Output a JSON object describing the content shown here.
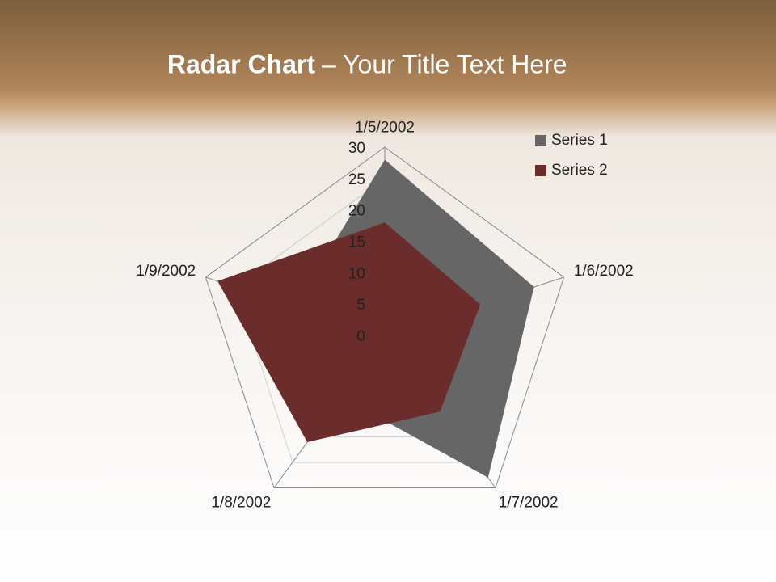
{
  "chart_data": {
    "type": "radar",
    "title": "Radar Chart",
    "subtitle": "– Your Title Text Here",
    "categories": [
      "1/5/2002",
      "1/6/2002",
      "1/7/2002",
      "1/8/2002",
      "1/9/2002"
    ],
    "series": [
      {
        "name": "Series 1",
        "color": "#666666",
        "values": [
          28,
          25,
          28,
          12,
          15
        ]
      },
      {
        "name": "Series 2",
        "color": "#6b2c2c",
        "values": [
          18,
          16,
          15,
          21,
          28
        ]
      }
    ],
    "ylim": [
      0,
      30
    ],
    "yticks": [
      0,
      5,
      10,
      15,
      20,
      25,
      30
    ],
    "grid": true,
    "legend": "top-right"
  }
}
